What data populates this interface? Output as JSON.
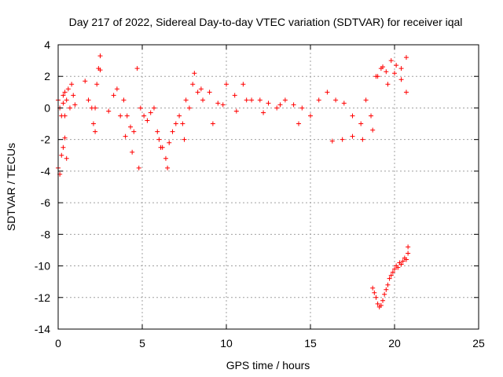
{
  "chart_data": {
    "type": "scatter",
    "title": "Day 217 of 2022, Sidereal Day-to-day VTEC variation (SDTVAR) for receiver iqal",
    "xlabel": "GPS time / hours",
    "ylabel": "SDTVAR / TECUs",
    "xlim": [
      0,
      25
    ],
    "ylim": [
      -14,
      4
    ],
    "xticks": [
      0,
      5,
      10,
      15,
      20,
      25
    ],
    "yticks": [
      -14,
      -12,
      -10,
      -8,
      -6,
      -4,
      -2,
      0,
      2,
      4
    ],
    "grid": true,
    "marker": "+",
    "series_color": "#ff0000",
    "series": [
      {
        "name": "SDTVAR",
        "x": [
          0.0,
          0.1,
          0.2,
          0.3,
          0.4,
          0.5,
          0.6,
          0.7,
          0.8,
          0.9,
          1.0,
          1.6,
          1.8,
          2.0,
          2.1,
          2.2,
          2.3,
          2.4,
          2.5,
          3.0,
          3.3,
          3.5,
          3.7,
          3.9,
          4.0,
          4.1,
          4.3,
          4.5,
          4.7,
          4.9,
          5.1,
          5.3,
          5.5,
          5.7,
          5.9,
          6.0,
          6.2,
          6.4,
          6.6,
          6.8,
          7.0,
          7.2,
          7.4,
          7.6,
          7.8,
          8.0,
          8.3,
          8.6,
          9.0,
          9.5,
          10.0,
          10.5,
          11.0,
          11.5,
          12.0,
          12.5,
          13.0,
          13.5,
          14.0,
          14.5,
          15.0,
          15.5,
          16.0,
          16.5,
          17.0,
          17.5,
          18.0,
          18.3,
          18.6,
          18.9,
          19.2,
          19.5,
          19.8,
          20.1,
          20.4,
          20.7,
          0.0,
          0.1,
          0.2,
          0.3,
          0.4,
          0.5,
          0.4,
          0.3,
          2.2,
          2.5,
          4.4,
          4.8,
          6.1,
          6.5,
          7.5,
          8.1,
          8.5,
          9.2,
          9.8,
          10.6,
          11.2,
          12.2,
          13.2,
          14.3,
          16.3,
          16.9,
          17.5,
          18.1,
          18.7,
          19.0,
          19.3,
          19.6,
          20.0,
          20.4,
          20.7,
          18.7,
          18.8,
          18.9,
          19.0,
          19.1,
          19.2,
          19.3,
          19.4,
          19.5,
          19.6,
          19.7,
          19.8,
          19.9,
          20.0,
          20.1,
          20.2,
          20.3,
          20.4,
          20.5,
          20.6,
          20.7,
          20.8,
          20.8
        ],
        "y": [
          0.5,
          0.0,
          -0.5,
          0.3,
          1.0,
          0.5,
          1.2,
          0.0,
          1.5,
          0.8,
          0.2,
          1.7,
          0.5,
          0.0,
          -1.0,
          -1.5,
          1.5,
          2.5,
          2.4,
          -0.2,
          0.8,
          1.2,
          -0.5,
          0.5,
          -1.8,
          -0.5,
          -1.2,
          -1.5,
          2.5,
          0.0,
          -0.5,
          -0.8,
          -0.3,
          0.0,
          -1.5,
          -2.0,
          -2.5,
          -3.2,
          -2.2,
          -1.5,
          -1.0,
          -0.5,
          -1.0,
          0.5,
          0.0,
          1.5,
          1.0,
          0.5,
          1.0,
          0.3,
          1.5,
          0.8,
          1.5,
          0.5,
          0.5,
          0.3,
          0.0,
          0.5,
          0.2,
          0.0,
          -0.5,
          0.5,
          1.0,
          0.5,
          0.3,
          -0.5,
          -1.0,
          0.5,
          -0.5,
          2.0,
          2.5,
          2.3,
          3.0,
          2.7,
          2.5,
          3.2,
          -3.8,
          -4.2,
          -3.0,
          -2.5,
          -1.9,
          -3.2,
          -0.5,
          0.8,
          0.0,
          3.3,
          -2.8,
          -3.8,
          -2.5,
          -3.8,
          -2.0,
          2.2,
          1.2,
          -1.0,
          0.2,
          -0.2,
          0.5,
          -0.3,
          0.2,
          -1.0,
          -2.1,
          -2.0,
          -1.8,
          -2.0,
          -1.4,
          2.0,
          2.6,
          1.5,
          2.2,
          1.8,
          1.0,
          -11.4,
          -11.7,
          -12.0,
          -12.4,
          -12.6,
          -12.5,
          -12.2,
          -11.8,
          -11.5,
          -11.2,
          -10.8,
          -10.6,
          -10.4,
          -10.2,
          -10.0,
          -10.1,
          -9.8,
          -9.9,
          -9.7,
          -9.5,
          -9.6,
          -9.2,
          -8.8
        ]
      }
    ]
  }
}
